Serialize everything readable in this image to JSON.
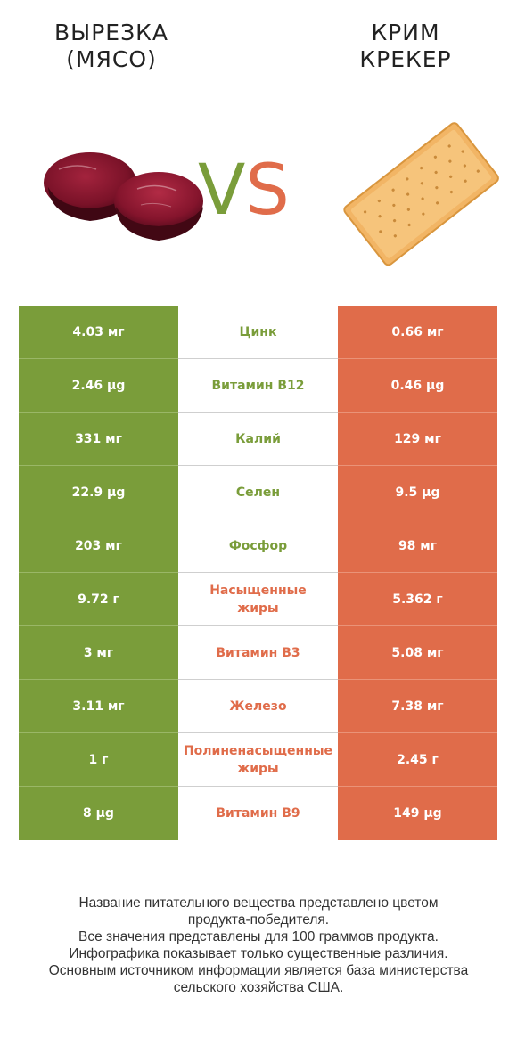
{
  "left_title": "ВЫРЕЗКА\n(МЯСО)",
  "right_title": "КРИМ\nКРЕКЕР",
  "vs": {
    "v": "V",
    "s": "S"
  },
  "colors": {
    "left": "#7a9d3a",
    "right": "#e06c4a"
  },
  "rows": [
    {
      "left": "4.03 мг",
      "name": "Цинк",
      "right": "0.66 мг",
      "winner": "left"
    },
    {
      "left": "2.46 µg",
      "name": "Витамин B12",
      "right": "0.46 µg",
      "winner": "left"
    },
    {
      "left": "331 мг",
      "name": "Калий",
      "right": "129 мг",
      "winner": "left"
    },
    {
      "left": "22.9 µg",
      "name": "Селен",
      "right": "9.5 µg",
      "winner": "left"
    },
    {
      "left": "203 мг",
      "name": "Фосфор",
      "right": "98 мг",
      "winner": "left"
    },
    {
      "left": "9.72 г",
      "name": "Насыщенные\nжиры",
      "right": "5.362 г",
      "winner": "right"
    },
    {
      "left": "3 мг",
      "name": "Витамин B3",
      "right": "5.08 мг",
      "winner": "right"
    },
    {
      "left": "3.11 мг",
      "name": "Железо",
      "right": "7.38 мг",
      "winner": "right"
    },
    {
      "left": "1 г",
      "name": "Полиненасыщенные\nжиры",
      "right": "2.45 г",
      "winner": "right"
    },
    {
      "left": "8 µg",
      "name": "Витамин B9",
      "right": "149 µg",
      "winner": "right"
    }
  ],
  "footer": [
    "Название питательного вещества представлено цветом",
    "продукта-победителя.",
    "Все значения представлены для 100 граммов продукта.",
    "Инфографика показывает только существенные различия.",
    "Основным источником информации является база министерства",
    "сельского хозяйства США."
  ]
}
